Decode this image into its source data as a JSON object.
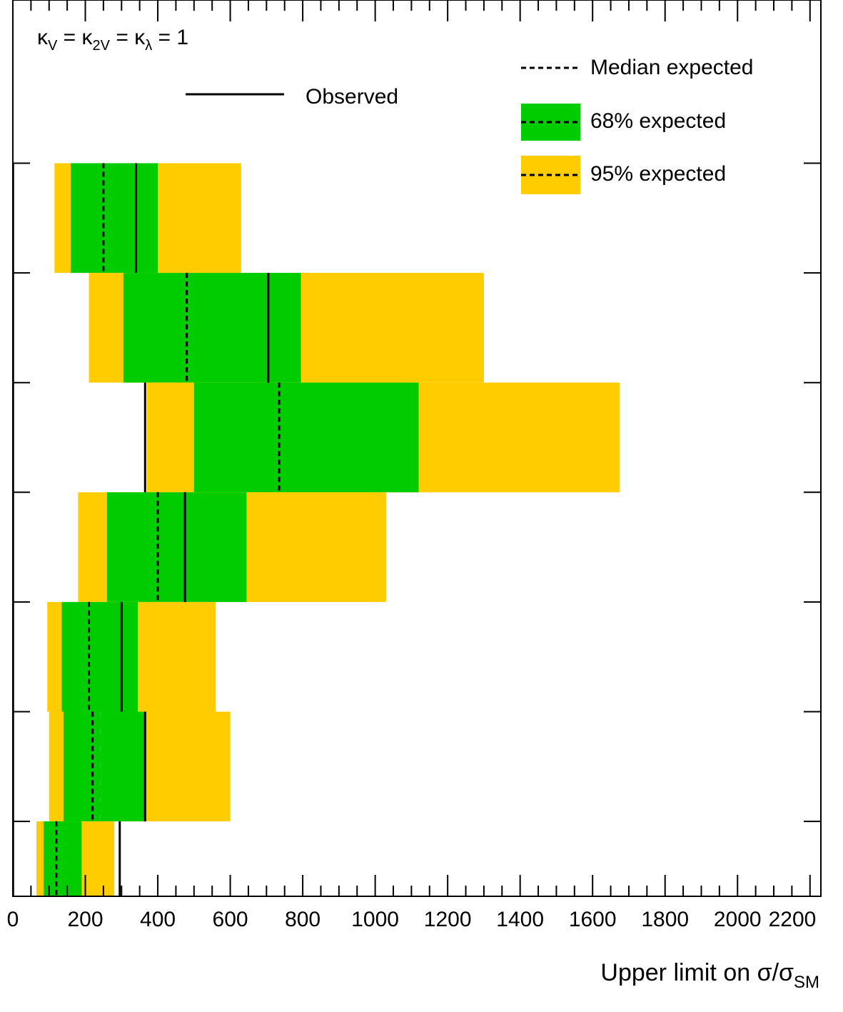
{
  "chart_data": {
    "type": "bar",
    "orientation": "horizontal",
    "title": "",
    "xlabel": "Upper limit on σ/σSM",
    "xlabel_parts": {
      "main": "Upper limit on σ/σ",
      "sub": "SM"
    },
    "xlim": [
      0,
      2230
    ],
    "xticks": [
      0,
      200,
      400,
      600,
      800,
      1000,
      1200,
      1400,
      1600,
      1800,
      2000,
      2200
    ],
    "xtick_labels": [
      "0",
      "200",
      "400",
      "600",
      "800",
      "1000",
      "1200",
      "1400",
      "1600",
      "1800",
      "2000",
      "2200"
    ],
    "grid": false,
    "reference_line_x": 0,
    "reference_line_color": "#cc0000",
    "colors": {
      "band68": "#00cc00",
      "band95": "#ffcc00",
      "line": "#000000"
    },
    "coupling_label": {
      "parts": [
        {
          "t": "κ",
          "s": ""
        },
        {
          "t": "",
          "s": "V"
        },
        {
          "t": " = κ",
          "s": ""
        },
        {
          "t": "",
          "s": "2V"
        },
        {
          "t": " = κ",
          "s": ""
        },
        {
          "t": "",
          "s": "λ"
        },
        {
          "t": " = 1",
          "s": ""
        }
      ]
    },
    "legend": {
      "observed": "Observed",
      "median": "Median expected",
      "band68": "68% expected",
      "band95": "95% expected"
    },
    "rows": [
      {
        "observed": 340,
        "median": 250,
        "band68": [
          160,
          400
        ],
        "band95": [
          115,
          630
        ]
      },
      {
        "observed": 705,
        "median": 480,
        "band68": [
          305,
          795
        ],
        "band95": [
          210,
          1300
        ]
      },
      {
        "observed": 365,
        "median": 735,
        "band68": [
          500,
          1120
        ],
        "band95": [
          370,
          1675
        ]
      },
      {
        "observed": 475,
        "median": 400,
        "band68": [
          260,
          645
        ],
        "band95": [
          180,
          1030
        ]
      },
      {
        "observed": 300,
        "median": 210,
        "band68": [
          135,
          345
        ],
        "band95": [
          95,
          560
        ]
      },
      {
        "observed": 365,
        "median": 220,
        "band68": [
          140,
          365
        ],
        "band95": [
          100,
          600
        ]
      },
      {
        "observed": 295,
        "median": 120,
        "band68": [
          85,
          190
        ],
        "band95": [
          65,
          280
        ]
      }
    ]
  }
}
